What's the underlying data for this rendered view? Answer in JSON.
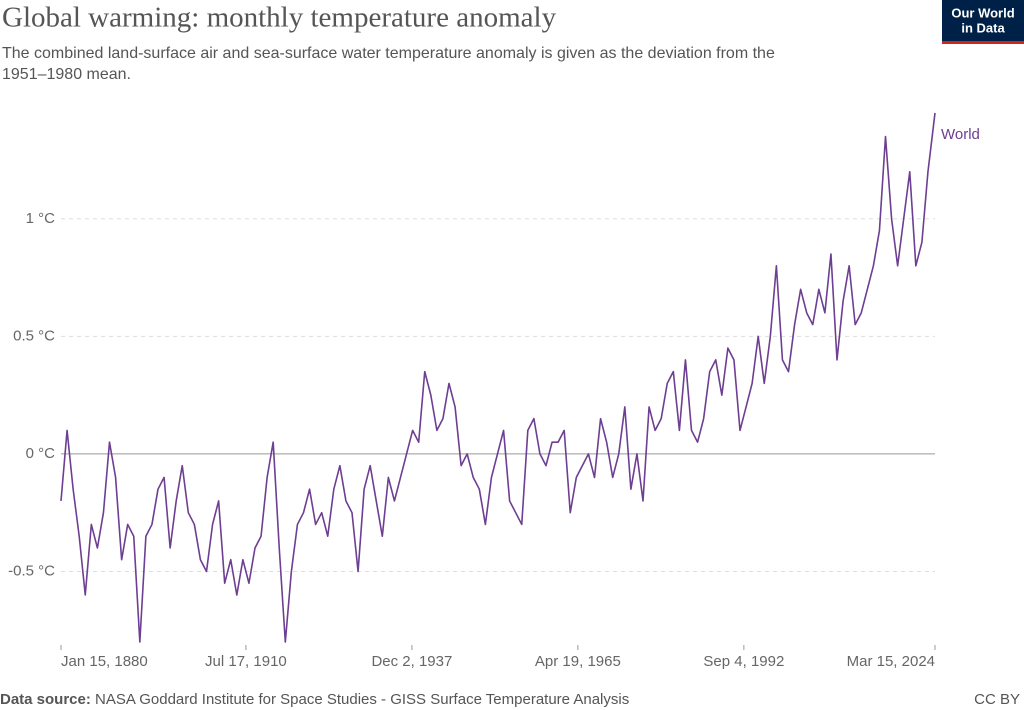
{
  "chart_data": {
    "type": "line",
    "title": "Global warming: monthly temperature anomaly",
    "subtitle": [
      "The combined land-surface air and sea-surface water temperature anomaly is given as the deviation from the",
      "1951–1980 mean."
    ],
    "logo": [
      "Our World",
      "in Data"
    ],
    "source_label": "Data source:",
    "source": "NASA Goddard Institute for Space Studies - GISS Surface Temperature Analysis",
    "license": "CC BY",
    "x": [
      "1880-01-15",
      "1881-01-15",
      "1882-01-15",
      "1883-01-15",
      "1884-01-15",
      "1885-01-15",
      "1886-01-15",
      "1887-01-15",
      "1888-01-15",
      "1889-01-15",
      "1890-01-15",
      "1891-01-15",
      "1892-01-15",
      "1893-01-15",
      "1894-01-15",
      "1895-01-15",
      "1896-01-15",
      "1897-01-15",
      "1898-01-15",
      "1899-01-15",
      "1900-01-15",
      "1901-01-15",
      "1902-01-15",
      "1903-01-15",
      "1904-01-15",
      "1905-01-15",
      "1906-01-15",
      "1907-01-15",
      "1908-01-15",
      "1909-01-15",
      "1910-01-15",
      "1911-01-15",
      "1912-01-15",
      "1913-01-15",
      "1914-01-15",
      "1915-01-15",
      "1916-01-15",
      "1917-01-15",
      "1918-01-15",
      "1919-01-15",
      "1920-01-15",
      "1921-01-15",
      "1922-01-15",
      "1923-01-15",
      "1924-01-15",
      "1925-01-15",
      "1926-01-15",
      "1927-01-15",
      "1928-01-15",
      "1929-01-15",
      "1930-01-15",
      "1931-01-15",
      "1932-01-15",
      "1933-01-15",
      "1934-01-15",
      "1935-01-15",
      "1936-01-15",
      "1937-01-15",
      "1938-01-15",
      "1939-01-15",
      "1940-01-15",
      "1941-01-15",
      "1942-01-15",
      "1943-01-15",
      "1944-01-15",
      "1945-01-15",
      "1946-01-15",
      "1947-01-15",
      "1948-01-15",
      "1949-01-15",
      "1950-01-15",
      "1951-01-15",
      "1952-01-15",
      "1953-01-15",
      "1954-01-15",
      "1955-01-15",
      "1956-01-15",
      "1957-01-15",
      "1958-01-15",
      "1959-01-15",
      "1960-01-15",
      "1961-01-15",
      "1962-01-15",
      "1963-01-15",
      "1964-01-15",
      "1965-01-15",
      "1966-01-15",
      "1967-01-15",
      "1968-01-15",
      "1969-01-15",
      "1970-01-15",
      "1971-01-15",
      "1972-01-15",
      "1973-01-15",
      "1974-01-15",
      "1975-01-15",
      "1976-01-15",
      "1977-01-15",
      "1978-01-15",
      "1979-01-15",
      "1980-01-15",
      "1981-01-15",
      "1982-01-15",
      "1983-01-15",
      "1984-01-15",
      "1985-01-15",
      "1986-01-15",
      "1987-01-15",
      "1988-01-15",
      "1989-01-15",
      "1990-01-15",
      "1991-01-15",
      "1992-01-15",
      "1993-01-15",
      "1994-01-15",
      "1995-01-15",
      "1996-01-15",
      "1997-01-15",
      "1998-01-15",
      "1999-01-15",
      "2000-01-15",
      "2001-01-15",
      "2002-01-15",
      "2003-01-15",
      "2004-01-15",
      "2005-01-15",
      "2006-01-15",
      "2007-01-15",
      "2008-01-15",
      "2009-01-15",
      "2010-01-15",
      "2011-01-15",
      "2012-01-15",
      "2013-01-15",
      "2014-01-15",
      "2015-01-15",
      "2016-01-15",
      "2017-01-15",
      "2018-01-15",
      "2019-01-15",
      "2020-01-15",
      "2021-01-15",
      "2022-01-15",
      "2023-01-15",
      "2024-03-15"
    ],
    "series": [
      {
        "name": "World",
        "color": "#6d3e91",
        "values": [
          -0.2,
          0.1,
          -0.15,
          -0.35,
          -0.6,
          -0.3,
          -0.4,
          -0.25,
          0.05,
          -0.1,
          -0.45,
          -0.3,
          -0.35,
          -0.8,
          -0.35,
          -0.3,
          -0.15,
          -0.1,
          -0.4,
          -0.2,
          -0.05,
          -0.25,
          -0.3,
          -0.45,
          -0.5,
          -0.3,
          -0.2,
          -0.55,
          -0.45,
          -0.6,
          -0.45,
          -0.55,
          -0.4,
          -0.35,
          -0.1,
          0.05,
          -0.4,
          -0.8,
          -0.5,
          -0.3,
          -0.25,
          -0.15,
          -0.3,
          -0.25,
          -0.35,
          -0.15,
          -0.05,
          -0.2,
          -0.25,
          -0.5,
          -0.15,
          -0.05,
          -0.2,
          -0.35,
          -0.1,
          -0.2,
          -0.1,
          0.0,
          0.1,
          0.05,
          0.35,
          0.25,
          0.1,
          0.15,
          0.3,
          0.2,
          -0.05,
          0.0,
          -0.1,
          -0.15,
          -0.3,
          -0.1,
          0.0,
          0.1,
          -0.2,
          -0.25,
          -0.3,
          0.1,
          0.15,
          0.0,
          -0.05,
          0.05,
          0.05,
          0.1,
          -0.25,
          -0.1,
          -0.05,
          0.0,
          -0.1,
          0.15,
          0.05,
          -0.1,
          0.0,
          0.2,
          -0.15,
          0.0,
          -0.2,
          0.2,
          0.1,
          0.15,
          0.3,
          0.35,
          0.1,
          0.4,
          0.1,
          0.05,
          0.15,
          0.35,
          0.4,
          0.25,
          0.45,
          0.4,
          0.1,
          0.2,
          0.3,
          0.5,
          0.3,
          0.5,
          0.8,
          0.4,
          0.35,
          0.55,
          0.7,
          0.6,
          0.55,
          0.7,
          0.6,
          0.85,
          0.4,
          0.65,
          0.8,
          0.55,
          0.6,
          0.7,
          0.8,
          0.95,
          1.35,
          1.0,
          0.8,
          1.0,
          1.2,
          0.8,
          0.9,
          1.2,
          1.45
        ]
      }
    ],
    "xlim": [
      "1880-01-15",
      "2024-03-15"
    ],
    "xticks": [
      {
        "value": "1880-01-15",
        "label": "Jan 15, 1880"
      },
      {
        "value": "1910-07-17",
        "label": "Jul 17, 1910"
      },
      {
        "value": "1937-12-02",
        "label": "Dec 2, 1937"
      },
      {
        "value": "1965-04-19",
        "label": "Apr 19, 1965"
      },
      {
        "value": "1992-09-04",
        "label": "Sep 4, 1992"
      },
      {
        "value": "2024-03-15",
        "label": "Mar 15, 2024"
      }
    ],
    "ylim": [
      -0.8,
      1.45
    ],
    "yticks": [
      {
        "value": -0.5,
        "label": "-0.5 °C"
      },
      {
        "value": 0,
        "label": "0 °C"
      },
      {
        "value": 0.5,
        "label": "0.5 °C"
      },
      {
        "value": 1,
        "label": "1 °C"
      }
    ],
    "grid": true
  }
}
